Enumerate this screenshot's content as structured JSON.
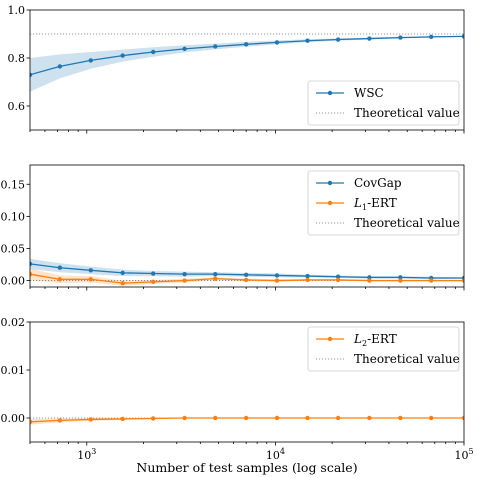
{
  "chart_data": [
    {
      "type": "line",
      "x_scale": "log",
      "xlim": [
        500,
        100000
      ],
      "ylim": [
        0.5,
        1.0
      ],
      "yticks": [
        "0.6",
        "0.8",
        "1.0"
      ],
      "theoretical_value": 0.9,
      "legend_position": "lower-right",
      "series": [
        {
          "name": "WSC",
          "color": "#1f77b4",
          "x": [
            500,
            720,
            1050,
            1550,
            2250,
            3300,
            4800,
            7000,
            10200,
            14800,
            21500,
            31500,
            46000,
            67000,
            100000
          ],
          "y": [
            0.73,
            0.765,
            0.79,
            0.81,
            0.825,
            0.838,
            0.848,
            0.857,
            0.865,
            0.872,
            0.877,
            0.881,
            0.885,
            0.888,
            0.89
          ],
          "band": [
            0.07,
            0.05,
            0.035,
            0.025,
            0.02,
            0.015,
            0.012,
            0.01,
            0.008,
            0.006,
            0.005,
            0.004,
            0.003,
            0.003,
            0.002
          ]
        }
      ],
      "legend": [
        "WSC",
        "Theoretical value"
      ]
    },
    {
      "type": "line",
      "x_scale": "log",
      "xlim": [
        500,
        100000
      ],
      "ylim": [
        -0.01,
        0.18
      ],
      "yticks": [
        "0.00",
        "0.05",
        "0.10",
        "0.15"
      ],
      "theoretical_value": 0.0,
      "legend_position": "top-right",
      "series": [
        {
          "name": "CovGap",
          "color": "#1f77b4",
          "x": [
            500,
            720,
            1050,
            1550,
            2250,
            3300,
            4800,
            7000,
            10200,
            14800,
            21500,
            31500,
            46000,
            67000,
            100000
          ],
          "y": [
            0.026,
            0.02,
            0.016,
            0.012,
            0.011,
            0.01,
            0.01,
            0.009,
            0.008,
            0.007,
            0.006,
            0.005,
            0.005,
            0.004,
            0.004
          ],
          "band": [
            0.008,
            0.007,
            0.006,
            0.005,
            0.004,
            0.004,
            0.003,
            0.003,
            0.003,
            0.002,
            0.002,
            0.002,
            0.002,
            0.002,
            0.001
          ]
        },
        {
          "name": "L1-ERT",
          "color": "#ff7f0e",
          "x": [
            500,
            720,
            1050,
            1550,
            2250,
            3300,
            4800,
            7000,
            10200,
            14800,
            21500,
            31500,
            46000,
            67000,
            100000
          ],
          "y": [
            0.01,
            0.002,
            0.002,
            -0.004,
            -0.002,
            0.0,
            0.003,
            0.001,
            0.0,
            0.001,
            0.001,
            0.0,
            0.0,
            0.0,
            0.0
          ],
          "band": [
            0.009,
            0.006,
            0.005,
            0.004,
            0.003,
            0.003,
            0.002,
            0.002,
            0.002,
            0.001,
            0.001,
            0.001,
            0.001,
            0.001,
            0.001
          ]
        }
      ],
      "legend": [
        "CovGap",
        "L1-ERT",
        "Theoretical value"
      ]
    },
    {
      "type": "line",
      "x_scale": "log",
      "xlim": [
        500,
        100000
      ],
      "ylim": [
        -0.005,
        0.02
      ],
      "yticks": [
        "0.00",
        "0.01",
        "0.02"
      ],
      "theoretical_value": 0.0,
      "legend_position": "top-right",
      "xlabel": "Number of test samples (log scale)",
      "xticks": [
        "1000",
        "10000",
        "100000"
      ],
      "series": [
        {
          "name": "L2-ERT",
          "color": "#ff7f0e",
          "x": [
            500,
            720,
            1050,
            1550,
            2250,
            3300,
            4800,
            7000,
            10200,
            14800,
            21500,
            31500,
            46000,
            67000,
            100000
          ],
          "y": [
            -0.0008,
            -0.0005,
            -0.0003,
            -0.0002,
            -0.0001,
            0.0,
            0.0,
            0.0,
            0.0,
            0.0,
            0.0,
            0.0,
            0.0,
            0.0,
            0.0
          ],
          "band": [
            0.0006,
            0.0004,
            0.0003,
            0.0002,
            0.0001,
            0.0001,
            0.0001,
            0.0,
            0.0,
            0.0,
            0.0,
            0.0,
            0.0,
            0.0,
            0.0
          ]
        }
      ],
      "legend": [
        "L2-ERT",
        "Theoretical value"
      ]
    }
  ]
}
